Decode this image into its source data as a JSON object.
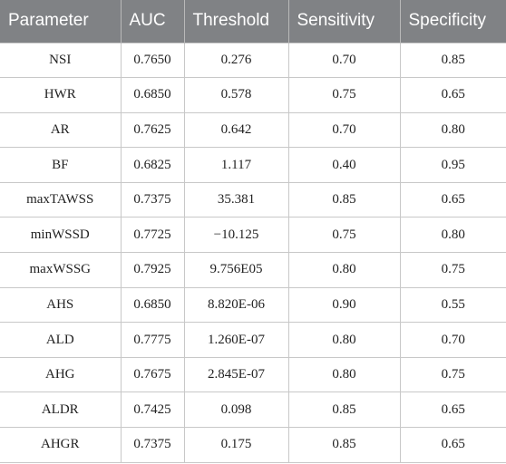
{
  "table": {
    "header": [
      "Parameter",
      "AUC",
      "Threshold",
      "Sensitivity",
      "Specificity"
    ],
    "rows": [
      [
        "NSI",
        "0.7650",
        "0.276",
        "0.70",
        "0.85"
      ],
      [
        "HWR",
        "0.6850",
        "0.578",
        "0.75",
        "0.65"
      ],
      [
        "AR",
        "0.7625",
        "0.642",
        "0.70",
        "0.80"
      ],
      [
        "BF",
        "0.6825",
        "1.117",
        "0.40",
        "0.95"
      ],
      [
        "maxTAWSS",
        "0.7375",
        "35.381",
        "0.85",
        "0.65"
      ],
      [
        "minWSSD",
        "0.7725",
        "−10.125",
        "0.75",
        "0.80"
      ],
      [
        "maxWSSG",
        "0.7925",
        "9.756E05",
        "0.80",
        "0.75"
      ],
      [
        "AHS",
        "0.6850",
        "8.820E-06",
        "0.90",
        "0.55"
      ],
      [
        "ALD",
        "0.7775",
        "1.260E-07",
        "0.80",
        "0.70"
      ],
      [
        "AHG",
        "0.7675",
        "2.845E-07",
        "0.80",
        "0.75"
      ],
      [
        "ALDR",
        "0.7425",
        "0.098",
        "0.85",
        "0.65"
      ],
      [
        "AHGR",
        "0.7375",
        "0.175",
        "0.85",
        "0.65"
      ]
    ]
  }
}
